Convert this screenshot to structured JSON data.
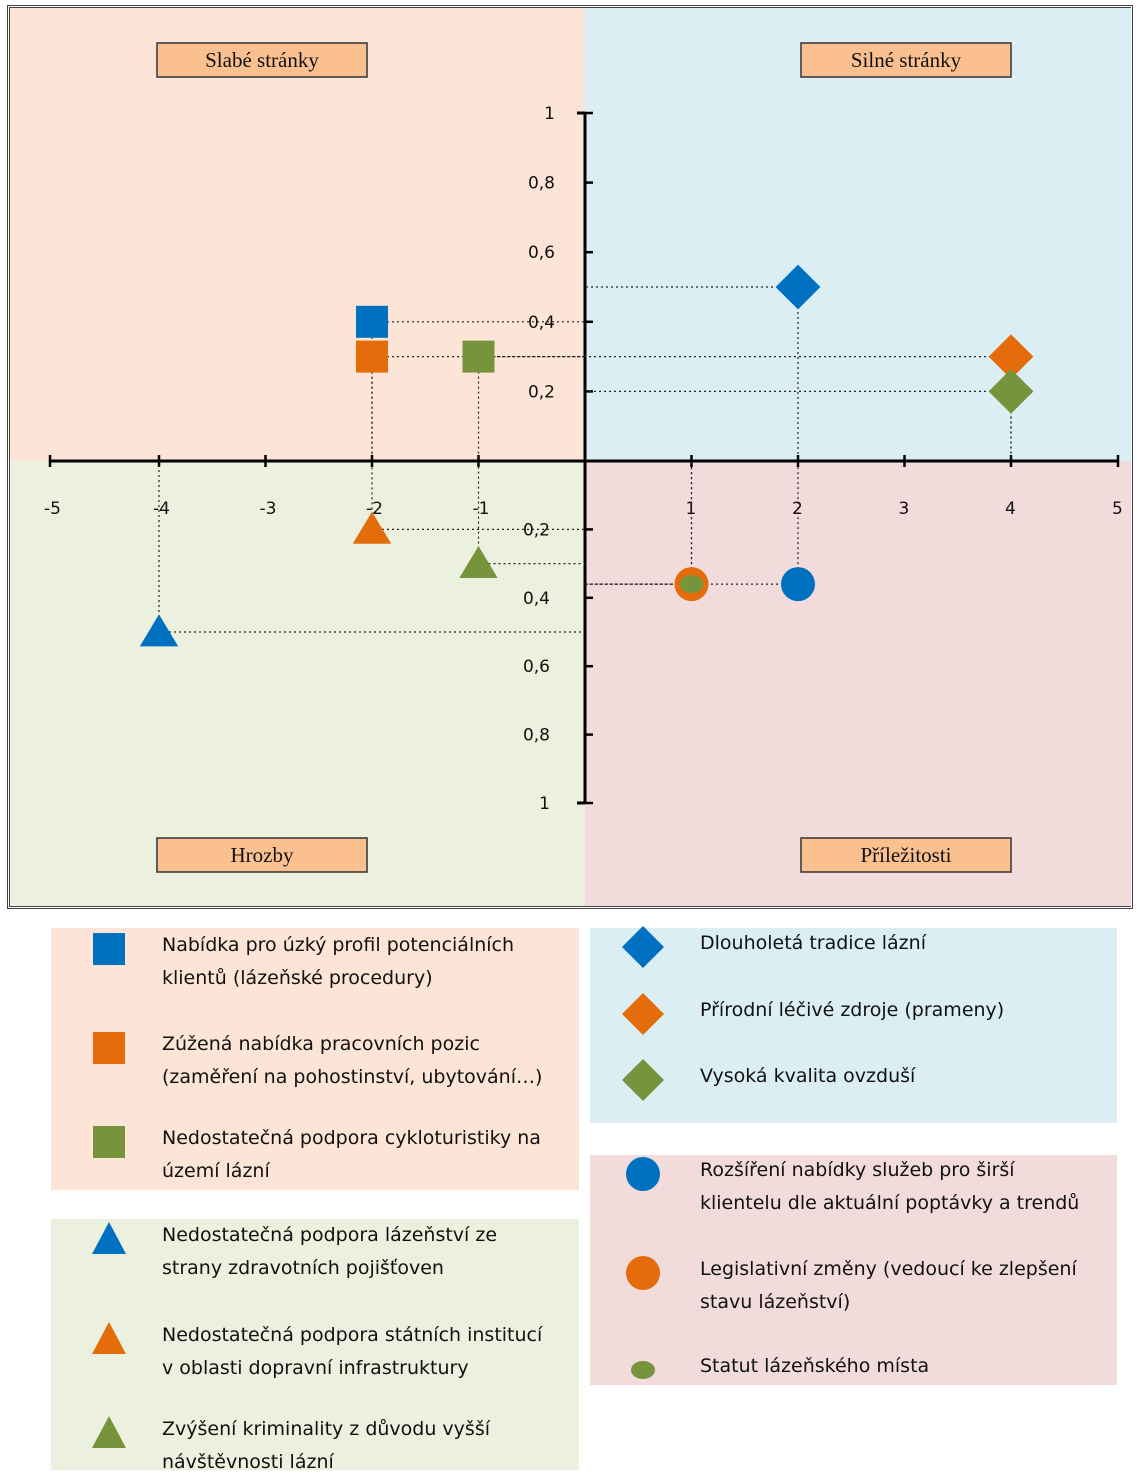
{
  "quadrants": {
    "weaknesses": "Slabé stránky",
    "strengths": "Silné stránky",
    "threats": "Hrozby",
    "opportunities": "Příležitosti"
  },
  "colors": {
    "weaknesses_bg": "#fce5d6",
    "strengths_bg": "#dbeef4",
    "threats_bg": "#ebf1de",
    "opportunities_bg": "#f2dcdb",
    "label_box": "#fac090",
    "blue": "#0070c0",
    "orange": "#e46c0a",
    "green": "#77933c"
  },
  "chart_data": {
    "type": "scatter",
    "xlim": [
      -5,
      5
    ],
    "ylim": [
      -1,
      1
    ],
    "x_ticks": [
      "-5",
      "-4",
      "-3",
      "-2",
      "-1",
      "1",
      "2",
      "3",
      "4",
      "5"
    ],
    "y_ticks_top": [
      "1",
      "0,8",
      "0,6",
      "0,4",
      "0,2"
    ],
    "y_ticks_bottom": [
      "0,2",
      "0,4",
      "0,6",
      "0,8",
      "1"
    ],
    "grid": false,
    "series": [
      {
        "name": "Nabídka pro úzký profil potenciálních klientů (lázeňské procedury)",
        "group": "weaknesses",
        "shape": "square",
        "color": "blue",
        "x": -2,
        "y": 0.4
      },
      {
        "name": "Zúžená nabídka pracovních pozic (zaměření na pohostinství, ubytování…)",
        "group": "weaknesses",
        "shape": "square",
        "color": "orange",
        "x": -2,
        "y": 0.3
      },
      {
        "name": "Nedostatečná podpora cykloturistiky na území lázní",
        "group": "weaknesses",
        "shape": "square",
        "color": "green",
        "x": -1,
        "y": 0.3
      },
      {
        "name": "Nedostatečná podpora lázeňství ze strany zdravotních pojišťoven",
        "group": "threats",
        "shape": "triangle",
        "color": "blue",
        "x": -4,
        "y": -0.5
      },
      {
        "name": "Nedostatečná podpora státních institucí v oblasti dopravní infrastruktury",
        "group": "threats",
        "shape": "triangle",
        "color": "orange",
        "x": -2,
        "y": -0.2
      },
      {
        "name": "Zvýšení kriminality z důvodu vyšší návštěvnosti lázní",
        "group": "threats",
        "shape": "triangle",
        "color": "green",
        "x": -1,
        "y": -0.3
      },
      {
        "name": "Dlouholetá tradice lázní",
        "group": "strengths",
        "shape": "diamond",
        "color": "blue",
        "x": 2,
        "y": 0.5
      },
      {
        "name": "Přírodní léčivé zdroje (prameny)",
        "group": "strengths",
        "shape": "diamond",
        "color": "orange",
        "x": 4,
        "y": 0.3
      },
      {
        "name": "Vysoká kvalita ovzduší",
        "group": "strengths",
        "shape": "diamond",
        "color": "green",
        "x": 4,
        "y": 0.2
      },
      {
        "name": "Rozšíření nabídky služeb pro širší klientelu dle aktuální poptávky a trendů",
        "group": "opportunities",
        "shape": "circle",
        "color": "blue",
        "x": 2,
        "y": -0.36
      },
      {
        "name": "Legislativní změny (vedoucí ke zlepšení stavu lázeňství)",
        "group": "opportunities",
        "shape": "circle",
        "color": "orange",
        "x": 1,
        "y": -0.36
      },
      {
        "name": "Statut lázeňského místa",
        "group": "opportunities",
        "shape": "ellipse",
        "color": "green",
        "x": 1,
        "y": -0.36
      }
    ]
  },
  "legend": {
    "weaknesses": [
      [
        "Nabídka pro úzký profil potenciálních",
        "klientů (lázeňské procedury)"
      ],
      [
        "Zúžená nabídka pracovních pozic",
        "(zaměření na pohostinství, ubytování…)"
      ],
      [
        "Nedostatečná podpora cykloturistiky na",
        "území lázní"
      ]
    ],
    "threats": [
      [
        "Nedostatečná podpora lázeňství ze",
        "strany zdravotních pojišťoven"
      ],
      [
        "Nedostatečná podpora státních institucí",
        "v oblasti dopravní infrastruktury"
      ],
      [
        "Zvýšení kriminality z důvodu vyšší",
        "návštěvnosti lázní"
      ]
    ],
    "strengths": [
      [
        "Dlouholetá tradice lázní"
      ],
      [
        "Přírodní léčivé zdroje (prameny)"
      ],
      [
        "Vysoká kvalita ovzduší"
      ]
    ],
    "opportunities": [
      [
        "Rozšíření nabídky služeb pro širší",
        "klientelu dle aktuální poptávky a trendů"
      ],
      [
        "Legislativní změny (vedoucí ke zlepšení",
        "stavu lázeňství)"
      ],
      [
        "Statut lázeňského místa"
      ]
    ]
  }
}
